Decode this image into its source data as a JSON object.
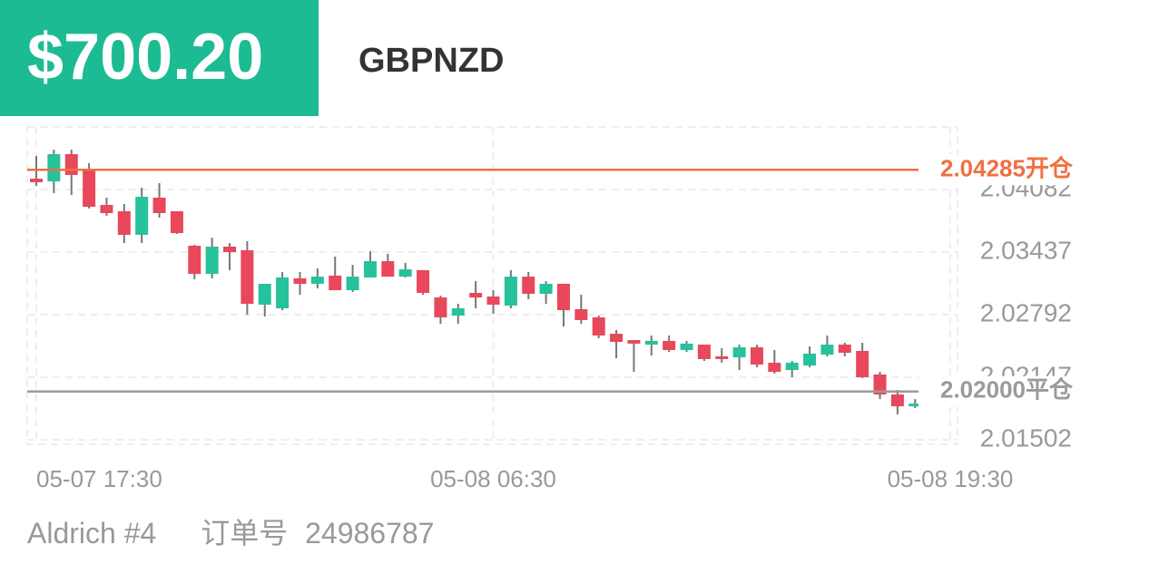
{
  "header": {
    "amount": "$700.20",
    "symbol": "GBPNZD"
  },
  "chart_data": {
    "type": "candlestick",
    "xlim": [
      0,
      52
    ],
    "xticks": [
      {
        "value": 0,
        "label": "05-07 17:30"
      },
      {
        "value": 26,
        "label": "05-08 06:30"
      },
      {
        "value": 52,
        "label": "05-08 19:30"
      }
    ],
    "ylim": [
      2.01455,
      2.04727
    ],
    "yticks": [
      2.01502,
      2.02147,
      2.02792,
      2.03437,
      2.04082
    ],
    "grid": true,
    "up_color": "#26c29c",
    "down_color": "#e8485a",
    "open": [
      2.04194,
      2.04166,
      2.04447,
      2.04278,
      2.03923,
      2.03858,
      2.03615,
      2.03998,
      2.03858,
      2.03502,
      2.03212,
      2.03493,
      2.03456,
      2.02895,
      2.02857,
      2.03166,
      2.0311,
      2.03194,
      2.03044,
      2.03175,
      2.03343,
      2.03184,
      2.0325,
      2.02969,
      2.02782,
      2.03016,
      2.02979,
      2.02885,
      2.03184,
      2.03007,
      2.0311,
      2.02848,
      2.02764,
      2.02595,
      2.0253,
      2.02483,
      2.02521,
      2.02427,
      2.02483,
      2.02362,
      2.02352,
      2.02455,
      2.02296,
      2.02221,
      2.02268,
      2.0238,
      2.02483,
      2.02418,
      2.02175,
      2.01969,
      2.01847
    ],
    "high": [
      2.04428,
      2.04493,
      2.04493,
      2.04353,
      2.03998,
      2.03932,
      2.04101,
      2.04147,
      2.03858,
      2.03512,
      2.03586,
      2.0353,
      2.03549,
      2.0311,
      2.03231,
      2.03231,
      2.03269,
      2.0339,
      2.03306,
      2.03446,
      2.03418,
      2.03325,
      2.0325,
      2.02988,
      2.02904,
      2.03138,
      2.03044,
      2.0325,
      2.03231,
      2.03138,
      2.0311,
      2.02997,
      2.02782,
      2.02633,
      2.0253,
      2.02577,
      2.02577,
      2.02521,
      2.02483,
      2.02446,
      2.02483,
      2.02483,
      2.02427,
      2.02315,
      2.02464,
      2.02577,
      2.02502,
      2.02502,
      2.02203,
      2.02016,
      2.01922
    ],
    "low": [
      2.04119,
      2.04045,
      2.04026,
      2.03886,
      2.03811,
      2.0353,
      2.0353,
      2.03792,
      2.03624,
      2.03156,
      2.03166,
      2.0325,
      2.02792,
      2.02773,
      2.02838,
      2.02997,
      2.03063,
      2.03044,
      2.03025,
      2.03175,
      2.03184,
      2.03175,
      2.02997,
      2.02698,
      2.02698,
      2.02857,
      2.02801,
      2.02857,
      2.02951,
      2.02904,
      2.0267,
      2.02698,
      2.02549,
      2.02343,
      2.02203,
      2.02371,
      2.02408,
      2.02408,
      2.02315,
      2.02296,
      2.02221,
      2.02249,
      2.02184,
      2.02147,
      2.02249,
      2.02362,
      2.02362,
      2.02137,
      2.01922,
      2.01763,
      2.01829
    ],
    "close": [
      2.04157,
      2.04447,
      2.04232,
      2.03904,
      2.03839,
      2.03615,
      2.04007,
      2.03839,
      2.03633,
      2.03212,
      2.03493,
      2.03437,
      2.02904,
      2.0311,
      2.03175,
      2.0311,
      2.03184,
      2.03044,
      2.03184,
      2.03343,
      2.03184,
      2.03259,
      2.03016,
      2.02764,
      2.02857,
      2.02969,
      2.02895,
      2.03184,
      2.03007,
      2.0311,
      2.02838,
      2.02736,
      2.02577,
      2.02511,
      2.02493,
      2.02521,
      2.02427,
      2.02493,
      2.02334,
      2.02334,
      2.02455,
      2.02277,
      2.02203,
      2.02296,
      2.0239,
      2.02483,
      2.02399,
      2.02147,
      2.01969,
      2.01847,
      2.01875
    ],
    "lines": [
      {
        "value": 2.04285,
        "value_label": "2.04285",
        "text": "开仓",
        "color": "#f07040"
      },
      {
        "value": 2.02,
        "value_label": "2.02000",
        "text": "平仓",
        "color": "#9a9a9a"
      }
    ]
  },
  "footer": {
    "account": "Aldrich #4",
    "order_label": "订单号",
    "order_number": "24986787"
  }
}
